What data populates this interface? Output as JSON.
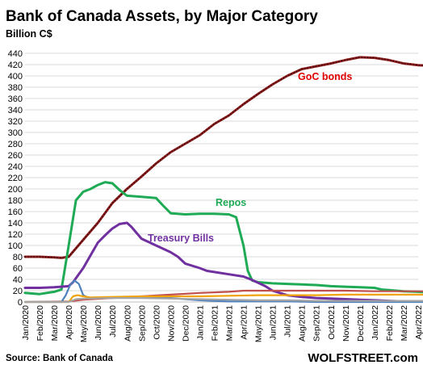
{
  "chart_data": {
    "type": "line",
    "title": "Bank of Canada Assets, by Major Category",
    "ylabel": "Billion C$",
    "ylim": [
      0,
      440
    ],
    "ytick_step": 20,
    "grid": true,
    "x": [
      "Jan/2020",
      "Feb/2020",
      "Mar/2020",
      "Apr/2020",
      "May/2020",
      "Jun/2020",
      "Jul/2020",
      "Aug/2020",
      "Sep/2020",
      "Oct/2020",
      "Nov/2020",
      "Dec/2020",
      "Jan/2021",
      "Feb/2021",
      "Mar/2021",
      "Apr/2021",
      "May/2021",
      "Jun/2021",
      "Jul/2021",
      "Aug/2021",
      "Sep/2021",
      "Oct/2021",
      "Nov/2021",
      "Dec/2021",
      "Jan/2022",
      "Feb/2022",
      "Mar/2022",
      "Apr/2022"
    ],
    "series": [
      {
        "name": "GoC bonds",
        "color": "#8b1a1a",
        "dotted": true,
        "values": [
          [
            0,
            80
          ],
          [
            1,
            80
          ],
          [
            2,
            79
          ],
          [
            2.5,
            78
          ],
          [
            3,
            80
          ],
          [
            4,
            110
          ],
          [
            5,
            140
          ],
          [
            6,
            175
          ],
          [
            7,
            200
          ],
          [
            8,
            222
          ],
          [
            9,
            245
          ],
          [
            10,
            265
          ],
          [
            11,
            280
          ],
          [
            12,
            295
          ],
          [
            13,
            315
          ],
          [
            14,
            330
          ],
          [
            15,
            350
          ],
          [
            16,
            368
          ],
          [
            17,
            385
          ],
          [
            18,
            400
          ],
          [
            19,
            412
          ],
          [
            20,
            417
          ],
          [
            21,
            422
          ],
          [
            22,
            428
          ],
          [
            23,
            433
          ],
          [
            24,
            432
          ],
          [
            25,
            428
          ],
          [
            26,
            422
          ],
          [
            27,
            419
          ],
          [
            27.8,
            418
          ]
        ]
      },
      {
        "name": "Repos",
        "color": "#1faa55",
        "values": [
          [
            0,
            16
          ],
          [
            1,
            14
          ],
          [
            2,
            18
          ],
          [
            2.5,
            22
          ],
          [
            3,
            100
          ],
          [
            3.5,
            180
          ],
          [
            4,
            195
          ],
          [
            4.5,
            200
          ],
          [
            5,
            207
          ],
          [
            5.5,
            212
          ],
          [
            6,
            210
          ],
          [
            6.5,
            198
          ],
          [
            7,
            188
          ],
          [
            8,
            186
          ],
          [
            9,
            184
          ],
          [
            9.5,
            170
          ],
          [
            10,
            157
          ],
          [
            11,
            155
          ],
          [
            12,
            156
          ],
          [
            13,
            156
          ],
          [
            14,
            155
          ],
          [
            14.5,
            150
          ],
          [
            15,
            100
          ],
          [
            15.3,
            55
          ],
          [
            15.6,
            38
          ],
          [
            16,
            35
          ],
          [
            17,
            33
          ],
          [
            18,
            32
          ],
          [
            19,
            31
          ],
          [
            20,
            30
          ],
          [
            21,
            28
          ],
          [
            22,
            27
          ],
          [
            23,
            26
          ],
          [
            24,
            25
          ],
          [
            24.5,
            22
          ],
          [
            25,
            21
          ],
          [
            26,
            19
          ],
          [
            27,
            18
          ],
          [
            27.8,
            17
          ]
        ]
      },
      {
        "name": "Treasury Bills",
        "color": "#7030a0",
        "values": [
          [
            0,
            25
          ],
          [
            1,
            25
          ],
          [
            2,
            26
          ],
          [
            3,
            28
          ],
          [
            3.3,
            35
          ],
          [
            4,
            60
          ],
          [
            5,
            105
          ],
          [
            5.5,
            118
          ],
          [
            6,
            130
          ],
          [
            6.5,
            138
          ],
          [
            7,
            140
          ],
          [
            7.3,
            133
          ],
          [
            8,
            112
          ],
          [
            9,
            100
          ],
          [
            10,
            88
          ],
          [
            10.5,
            80
          ],
          [
            11,
            68
          ],
          [
            12,
            60
          ],
          [
            12.5,
            55
          ],
          [
            13,
            53
          ],
          [
            14,
            49
          ],
          [
            15,
            45
          ],
          [
            15.5,
            40
          ],
          [
            16,
            34
          ],
          [
            16.5,
            28
          ],
          [
            17,
            20
          ],
          [
            18,
            12
          ],
          [
            19,
            9
          ],
          [
            20,
            7
          ],
          [
            21,
            6
          ],
          [
            22,
            5
          ],
          [
            23,
            4
          ],
          [
            24,
            3
          ],
          [
            25,
            2
          ],
          [
            26,
            1
          ],
          [
            27,
            1
          ],
          [
            27.8,
            1
          ]
        ]
      },
      {
        "color": "#c0504d",
        "values": [
          [
            0,
            0
          ],
          [
            3,
            1
          ],
          [
            4,
            4
          ],
          [
            6,
            7
          ],
          [
            8,
            10
          ],
          [
            10,
            13
          ],
          [
            12,
            16
          ],
          [
            14,
            18
          ],
          [
            15,
            20
          ],
          [
            16,
            20
          ],
          [
            18,
            20
          ],
          [
            20,
            20
          ],
          [
            22,
            20
          ],
          [
            24,
            19
          ],
          [
            26,
            19
          ],
          [
            27.8,
            19
          ]
        ]
      },
      {
        "color": "#4f81bd",
        "values": [
          [
            0,
            0
          ],
          [
            2.5,
            0
          ],
          [
            2.8,
            12
          ],
          [
            3.1,
            30
          ],
          [
            3.4,
            38
          ],
          [
            3.7,
            32
          ],
          [
            4,
            12
          ],
          [
            4.3,
            8
          ],
          [
            5,
            7
          ],
          [
            6,
            8
          ],
          [
            8,
            8
          ],
          [
            10,
            7
          ],
          [
            11,
            5
          ],
          [
            12,
            3
          ],
          [
            13,
            2
          ],
          [
            14,
            1
          ],
          [
            16,
            1
          ],
          [
            18,
            1
          ],
          [
            20,
            0
          ],
          [
            24,
            0
          ],
          [
            27.8,
            0
          ]
        ]
      },
      {
        "color": "#f0a30a",
        "values": [
          [
            0,
            0
          ],
          [
            3,
            0
          ],
          [
            3.3,
            10
          ],
          [
            3.6,
            12
          ],
          [
            4,
            10
          ],
          [
            4.5,
            8
          ],
          [
            6,
            9
          ],
          [
            8,
            10
          ],
          [
            10,
            10
          ],
          [
            12,
            10
          ],
          [
            14,
            11
          ],
          [
            16,
            12
          ],
          [
            18,
            12
          ],
          [
            20,
            12
          ],
          [
            22,
            13
          ],
          [
            24,
            13
          ],
          [
            26,
            13
          ],
          [
            27.8,
            13
          ]
        ]
      },
      {
        "color": "#a5a5a5",
        "values": [
          [
            0,
            0
          ],
          [
            3,
            0
          ],
          [
            3.5,
            5
          ],
          [
            4,
            6
          ],
          [
            6,
            7
          ],
          [
            8,
            7
          ],
          [
            10,
            6
          ],
          [
            12,
            5
          ],
          [
            14,
            4
          ],
          [
            16,
            3
          ],
          [
            18,
            3
          ],
          [
            20,
            2
          ],
          [
            22,
            2
          ],
          [
            24,
            2
          ],
          [
            27.8,
            2
          ]
        ]
      }
    ],
    "annotations": [
      {
        "text": "GoC bonds",
        "color": "#e00000"
      },
      {
        "text": "Repos",
        "color": "#1faa55"
      },
      {
        "text": "Treasury Bills",
        "color": "#7030a0"
      }
    ]
  },
  "footer": {
    "source": "Source: Bank of Canada",
    "brand": "WOLFSTREET.com"
  }
}
